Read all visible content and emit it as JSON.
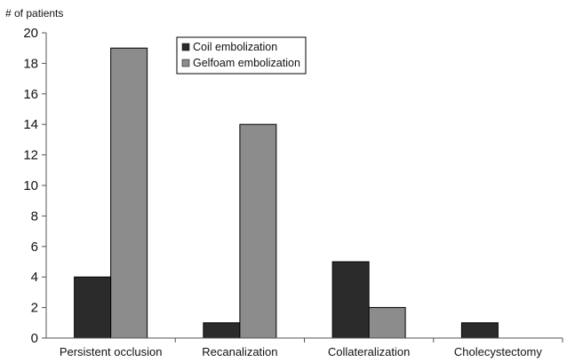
{
  "chart_data": {
    "type": "bar",
    "title": "",
    "ylabel": "# of patients",
    "xlabel": "",
    "ylim": [
      0,
      20
    ],
    "yticks": [
      0,
      2,
      4,
      6,
      8,
      10,
      12,
      14,
      16,
      18,
      20
    ],
    "grid": false,
    "legend_position": "top-center",
    "categories": [
      "Persistent occlusion",
      "Recanalization",
      "Collateralization",
      "Cholecystectomy"
    ],
    "series": [
      {
        "name": "Coil embolization",
        "color": "#2b2b2b",
        "values": [
          4,
          1,
          5,
          1
        ]
      },
      {
        "name": "Gelfoam embolization",
        "color": "#8c8c8c",
        "values": [
          19,
          14,
          2,
          0
        ]
      }
    ]
  }
}
